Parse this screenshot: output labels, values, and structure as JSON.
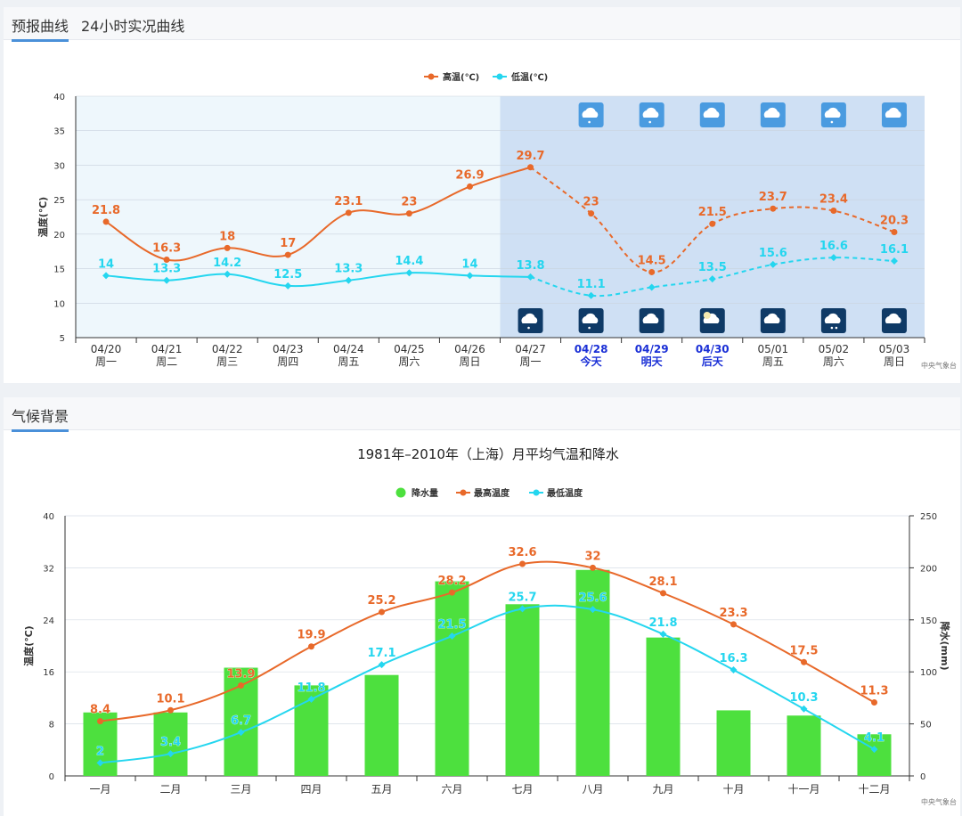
{
  "forecast_tabs": [
    {
      "label": "预报曲线"
    },
    {
      "label": "24小时实况曲线"
    }
  ],
  "climate_tab": {
    "label": "气候背景"
  },
  "source": "中央气象台",
  "colors": {
    "high": "#e8692a",
    "low": "#24d6ef",
    "rain": "#4de03e",
    "forecast_bg": "#cfe0f4",
    "past_bg": "#eef7fc",
    "highlight": "#1a2fd6"
  },
  "chart_data": [
    {
      "type": "line",
      "ylabel": "温度(℃)",
      "ylim": [
        5,
        40
      ],
      "yticks": [
        5,
        10,
        15,
        20,
        25,
        30,
        35,
        40
      ],
      "categories": [
        "04/20",
        "04/21",
        "04/22",
        "04/23",
        "04/24",
        "04/25",
        "04/26",
        "04/27",
        "04/28",
        "04/29",
        "04/30",
        "05/01",
        "05/02",
        "05/03"
      ],
      "weekdays": [
        "周一",
        "周二",
        "周三",
        "周四",
        "周五",
        "周六",
        "周日",
        "周一",
        "今天",
        "明天",
        "后天",
        "周五",
        "周六",
        "周日"
      ],
      "highlight_days": [
        8,
        9,
        10
      ],
      "forecast_start_index": 7,
      "weather_icons_day": [
        "",
        "",
        "",
        "",
        "",
        "",
        "",
        "",
        "light-rain-icon",
        "light-rain-icon",
        "cloud-icon",
        "cloud-icon",
        "light-rain-icon",
        "cloud-icon"
      ],
      "weather_icons_night": [
        "",
        "",
        "",
        "",
        "",
        "",
        "",
        "light-rain-icon",
        "light-rain-icon",
        "cloud-icon",
        "partly-cloudy-night-icon",
        "cloud-icon",
        "moderate-rain-icon",
        "cloud-icon"
      ],
      "series": [
        {
          "name": "高温(℃)",
          "values": [
            21.8,
            16.3,
            18,
            17,
            23.1,
            23,
            26.9,
            29.7,
            23,
            14.5,
            21.5,
            23.7,
            23.4,
            20.3
          ]
        },
        {
          "name": "低温(℃)",
          "values": [
            14,
            13.3,
            14.2,
            12.5,
            13.3,
            14.4,
            14,
            13.8,
            11.1,
            12.3,
            13.5,
            15.6,
            16.6,
            16.1
          ],
          "labels": [
            "14",
            "13.3",
            "14.2",
            "12.5",
            "13.3",
            "14.4",
            "14",
            "13.8",
            "11.1",
            "",
            "13.5",
            "15.6",
            "16.6",
            "16.1"
          ]
        }
      ]
    },
    {
      "type": "bar+line",
      "title": "1981年–2010年（上海）月平均气温和降水",
      "ylabel": "温度(℃)",
      "y2label": "降水(mm)",
      "ylim": [
        0,
        40
      ],
      "yticks": [
        0,
        8,
        16,
        24,
        32,
        40
      ],
      "y2lim": [
        0,
        250
      ],
      "y2ticks": [
        0,
        50,
        100,
        150,
        200,
        250
      ],
      "categories": [
        "一月",
        "二月",
        "三月",
        "四月",
        "五月",
        "六月",
        "七月",
        "八月",
        "九月",
        "十月",
        "十一月",
        "十二月"
      ],
      "series": [
        {
          "name": "降水量",
          "type": "bar",
          "values": [
            61,
            61,
            104,
            87,
            97,
            187,
            165,
            198,
            133,
            63,
            58,
            40
          ]
        },
        {
          "name": "最高温度",
          "type": "line",
          "values": [
            8.4,
            10.1,
            13.9,
            19.9,
            25.2,
            28.2,
            32.6,
            32,
            28.1,
            23.3,
            17.5,
            11.3
          ]
        },
        {
          "name": "最低温度",
          "type": "line",
          "values": [
            2,
            3.4,
            6.7,
            11.8,
            17.1,
            21.5,
            25.7,
            25.6,
            21.8,
            16.3,
            10.3,
            4.1
          ]
        }
      ]
    }
  ]
}
